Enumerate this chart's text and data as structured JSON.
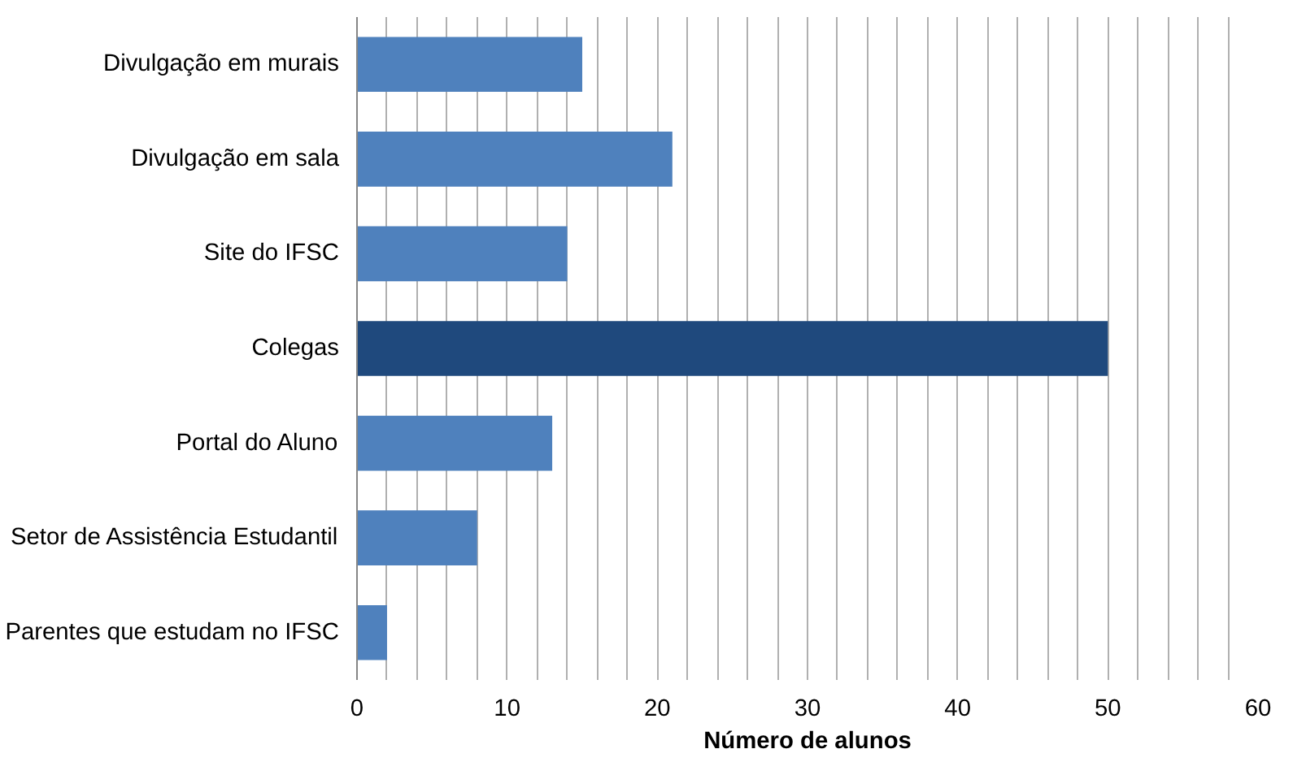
{
  "chart_data": {
    "type": "bar",
    "orientation": "horizontal",
    "xlabel": "Número de alunos",
    "categories": [
      "Divulgação em murais",
      "Divulgação em sala",
      "Site do IFSC",
      "Colegas",
      "Portal do Aluno",
      "Setor de Assistência Estudantil",
      "Parentes que estudam no IFSC"
    ],
    "values": [
      15,
      21,
      14,
      50,
      13,
      8,
      2
    ],
    "colors": [
      "#4f81bd",
      "#4f81bd",
      "#4f81bd",
      "#1f497d",
      "#4f81bd",
      "#4f81bd",
      "#4f81bd"
    ],
    "xlim": [
      0,
      60
    ],
    "xticks": [
      0,
      {
        "value": 2,
        "label": null
      },
      {
        "value": 4,
        "label": null
      },
      {
        "value": 6,
        "label": null
      },
      {
        "value": 8,
        "label": null
      },
      10,
      {
        "value": 12,
        "label": null
      },
      {
        "value": 14,
        "label": null
      },
      {
        "value": 16,
        "label": null
      },
      {
        "value": 18,
        "label": null
      },
      20,
      {
        "value": 22,
        "label": null
      },
      {
        "value": 24,
        "label": null
      },
      {
        "value": 26,
        "label": null
      },
      {
        "value": 28,
        "label": null
      },
      30,
      {
        "value": 32,
        "label": null
      },
      {
        "value": 34,
        "label": null
      },
      {
        "value": 36,
        "label": null
      },
      {
        "value": 38,
        "label": null
      },
      40,
      {
        "value": 42,
        "label": null
      },
      {
        "value": 44,
        "label": null
      },
      {
        "value": 46,
        "label": null
      },
      {
        "value": 48,
        "label": null
      },
      50,
      {
        "value": 52,
        "label": null
      },
      {
        "value": 54,
        "label": null
      },
      {
        "value": 56,
        "label": null
      },
      {
        "value": 58,
        "label": null
      },
      60
    ],
    "grid": "x"
  }
}
